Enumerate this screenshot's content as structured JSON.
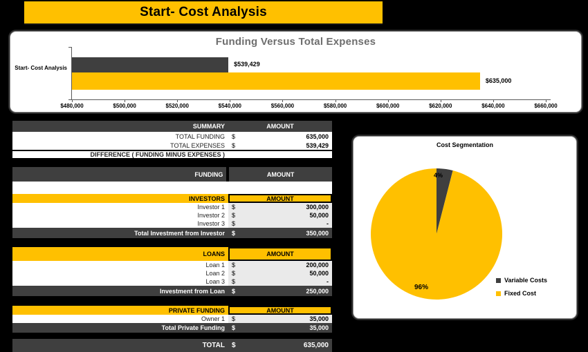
{
  "banner": {
    "title": "Start- Cost Analysis"
  },
  "colors": {
    "accent_yellow": "#FFC000",
    "dark_gray": "#3F3F3F",
    "shade_gray": "#EAEAEA",
    "title_gray": "#6E6E6E",
    "page_bg": "#000000"
  },
  "chart_data": [
    {
      "type": "bar",
      "orientation": "horizontal",
      "title": "Funding Versus Total Expenses",
      "categories": [
        "Start- Cost Analysis"
      ],
      "series": [
        {
          "name": "Total Expenses",
          "value": 539429,
          "label": "$539,429",
          "color": "#3F3F3F"
        },
        {
          "name": "Total Funding",
          "value": 635000,
          "label": "$635,000",
          "color": "#FFC000"
        }
      ],
      "xlim": [
        480000,
        660000
      ],
      "tick_step": 20000,
      "tick_labels": [
        "$480,000",
        "$500,000",
        "$520,000",
        "$540,000",
        "$560,000",
        "$580,000",
        "$600,000",
        "$620,000",
        "$640,000",
        "$660,000"
      ],
      "grid": false,
      "legend": "none"
    },
    {
      "type": "pie",
      "title": "Cost Segmentation",
      "slices": [
        {
          "name": "Variable Costs",
          "pct": 4,
          "label": "4%",
          "color": "#3F3F3F"
        },
        {
          "name": "Fixed Cost",
          "pct": 96,
          "label": "96%",
          "color": "#FFC000"
        }
      ],
      "legend_position": "right"
    }
  ],
  "tables": {
    "summary": {
      "header": {
        "label": "SUMMARY",
        "amount": "AMOUNT"
      },
      "rows": [
        {
          "label": "TOTAL FUNDING",
          "currency": "$",
          "amount": "635,000"
        },
        {
          "label": "TOTAL EXPENSES",
          "currency": "$",
          "amount": "539,429"
        }
      ],
      "difference": {
        "label": "DIFFERENCE ( FUNDING MINUS EXPENSES )"
      }
    },
    "funding": {
      "label": "FUNDING",
      "amount": "AMOUNT"
    },
    "investors": {
      "header": {
        "label": "INVESTORS",
        "amount": "AMOUNT"
      },
      "rows": [
        {
          "label": "Investor 1",
          "currency": "$",
          "amount": "300,000"
        },
        {
          "label": "Investor 2",
          "currency": "$",
          "amount": "50,000"
        },
        {
          "label": "Investor 3",
          "currency": "$",
          "amount": "-"
        }
      ],
      "total": {
        "label": "Total Investment from Investor",
        "currency": "$",
        "amount": "350,000"
      }
    },
    "loans": {
      "header": {
        "label": "LOANS",
        "amount": "AMOUNT"
      },
      "rows": [
        {
          "label": "Loan 1",
          "currency": "$",
          "amount": "200,000"
        },
        {
          "label": "Loan 2",
          "currency": "$",
          "amount": "50,000"
        },
        {
          "label": "Loan 3",
          "currency": "$",
          "amount": "-"
        }
      ],
      "total": {
        "label": "Investment from Loan",
        "currency": "$",
        "amount": "250,000"
      }
    },
    "private_funding": {
      "header": {
        "label": "PRIVATE FUNDING",
        "amount": "AMOUNT"
      },
      "rows": [
        {
          "label": "Owner 1",
          "currency": "$",
          "amount": "35,000"
        }
      ],
      "total": {
        "label": "Total Private Funding",
        "currency": "$",
        "amount": "35,000"
      }
    },
    "grand_total": {
      "label": "TOTAL",
      "currency": "$",
      "amount": "635,000"
    }
  }
}
